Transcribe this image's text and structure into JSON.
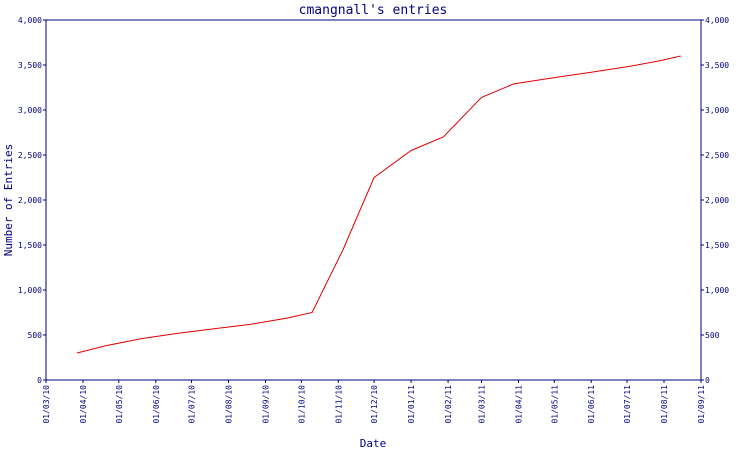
{
  "chart_data": {
    "type": "line",
    "title": "cmangnall's entries",
    "xlabel": "Date",
    "ylabel": "Number of Entries",
    "ylim": [
      0,
      4000
    ],
    "yticks": [
      0,
      500,
      1000,
      1500,
      2000,
      2500,
      3000,
      3500,
      4000
    ],
    "ytick_labels": [
      "0",
      "500",
      "1,000",
      "1,500",
      "2,000",
      "2,500",
      "3,000",
      "3,500",
      "4,000"
    ],
    "xlim": [
      "2010-03-01",
      "2011-09-01"
    ],
    "xticks": [
      "2010-03-01",
      "2010-04-01",
      "2010-05-01",
      "2010-06-01",
      "2010-07-01",
      "2010-08-01",
      "2010-09-01",
      "2010-10-01",
      "2010-11-01",
      "2010-12-01",
      "2011-01-01",
      "2011-02-01",
      "2011-03-01",
      "2011-04-01",
      "2011-05-01",
      "2011-06-01",
      "2011-07-01",
      "2011-08-01",
      "2011-09-01"
    ],
    "xtick_labels": [
      "01/03/10",
      "01/04/10",
      "01/05/10",
      "01/06/10",
      "01/07/10",
      "01/08/10",
      "01/09/10",
      "01/10/10",
      "01/11/10",
      "01/12/10",
      "01/01/11",
      "01/02/11",
      "01/03/11",
      "01/04/11",
      "01/05/11",
      "01/06/11",
      "01/07/11",
      "01/08/11",
      "01/09/11"
    ],
    "grid": false,
    "right_axis": true,
    "series": [
      {
        "color": "#e00000",
        "x": [
          "2010-03-27",
          "2010-04-20",
          "2010-05-20",
          "2010-06-20",
          "2010-07-20",
          "2010-08-20",
          "2010-09-20",
          "2010-10-10",
          "2010-11-05",
          "2010-12-01",
          "2011-01-01",
          "2011-01-28",
          "2011-03-01",
          "2011-03-28",
          "2011-05-01",
          "2011-06-01",
          "2011-07-01",
          "2011-07-28",
          "2011-08-15"
        ],
        "values": [
          300,
          380,
          460,
          520,
          570,
          620,
          690,
          750,
          1450,
          2250,
          2550,
          2700,
          3140,
          3290,
          3360,
          3420,
          3480,
          3545,
          3600
        ]
      }
    ]
  }
}
